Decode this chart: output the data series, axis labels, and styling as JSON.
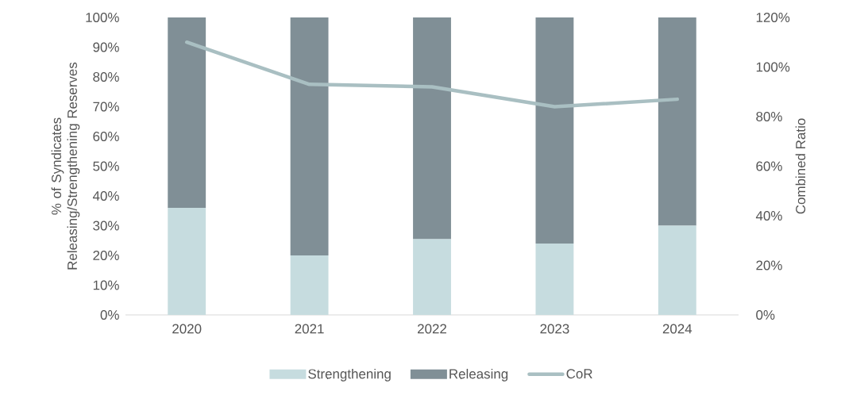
{
  "chart_data": {
    "type": "bar",
    "stacked": true,
    "categories": [
      "2020",
      "2021",
      "2022",
      "2023",
      "2024"
    ],
    "series": [
      {
        "name": "Strengthening",
        "color": "#c6dcdf",
        "values": [
          36,
          20,
          25.5,
          24,
          30
        ]
      },
      {
        "name": "Releasing",
        "color": "#808f96",
        "values": [
          64,
          80,
          74.5,
          76,
          70
        ]
      },
      {
        "name": "CoR",
        "type": "line",
        "axis": "y2",
        "color": "#a9bfc2",
        "values": [
          110,
          93,
          92,
          84,
          87
        ]
      }
    ],
    "ylabel": "% of Syndicates Releasing/Strengthening Reserves",
    "y2label": "Combined Ratio",
    "ylim": [
      0,
      100
    ],
    "yticks": [
      {
        "value": 0,
        "label": "0%"
      },
      {
        "value": 10,
        "label": "10%"
      },
      {
        "value": 20,
        "label": "20%"
      },
      {
        "value": 30,
        "label": "30%"
      },
      {
        "value": 40,
        "label": "40%"
      },
      {
        "value": 50,
        "label": "50%"
      },
      {
        "value": 60,
        "label": "60%"
      },
      {
        "value": 70,
        "label": "70%"
      },
      {
        "value": 80,
        "label": "80%"
      },
      {
        "value": 90,
        "label": "90%"
      },
      {
        "value": 100,
        "label": "100%"
      }
    ],
    "y2lim": [
      0,
      120
    ],
    "y2ticks": [
      {
        "value": 0,
        "label": "0%"
      },
      {
        "value": 20,
        "label": "20%"
      },
      {
        "value": 40,
        "label": "40%"
      },
      {
        "value": 60,
        "label": "60%"
      },
      {
        "value": 80,
        "label": "80%"
      },
      {
        "value": 100,
        "label": "100%"
      },
      {
        "value": 120,
        "label": "120%"
      }
    ],
    "legend": "bottom"
  }
}
